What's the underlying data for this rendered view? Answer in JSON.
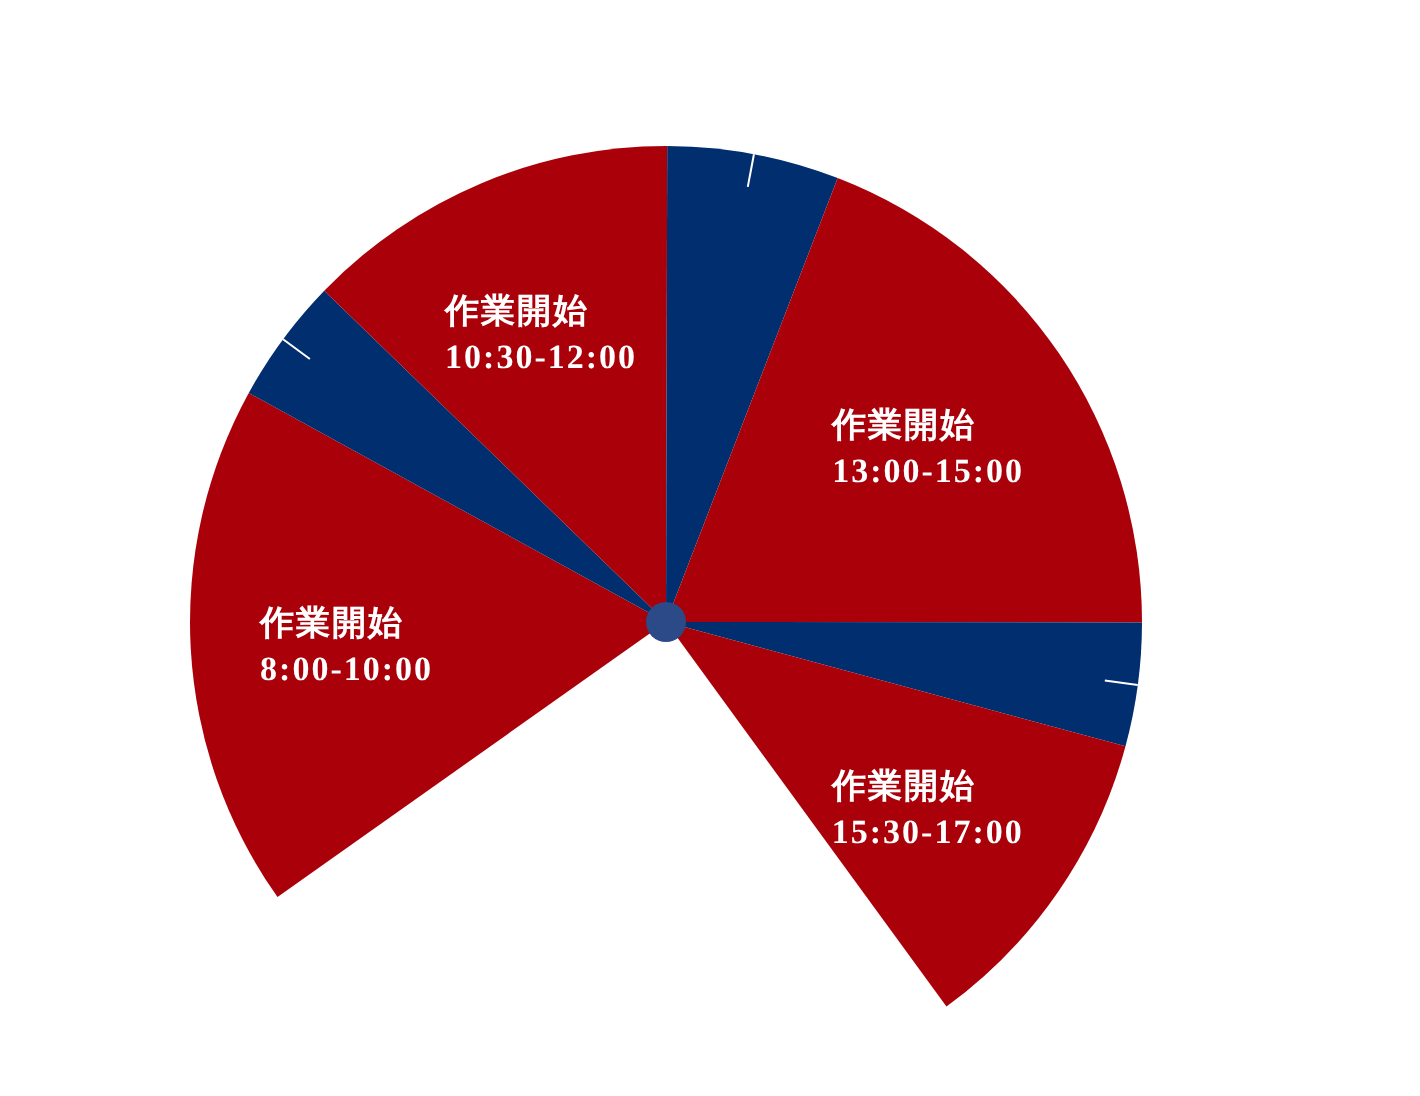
{
  "chart_data": {
    "type": "pie",
    "categories": [
      "作業開始\n8:00-10:00",
      null,
      "作業開始\n10:30-12:00",
      null,
      "作業開始\n13:00-15:00",
      null,
      "作業開始\n15:30-17:00"
    ],
    "values": [
      23.8,
      5.7,
      17.1,
      7.8,
      25.6,
      5.6,
      14.4
    ],
    "colors": [
      "#aa000a",
      "#002e6e",
      "#aa000a",
      "#002e6e",
      "#aa000a",
      "#002e6e",
      "#aa000a"
    ]
  }
}
